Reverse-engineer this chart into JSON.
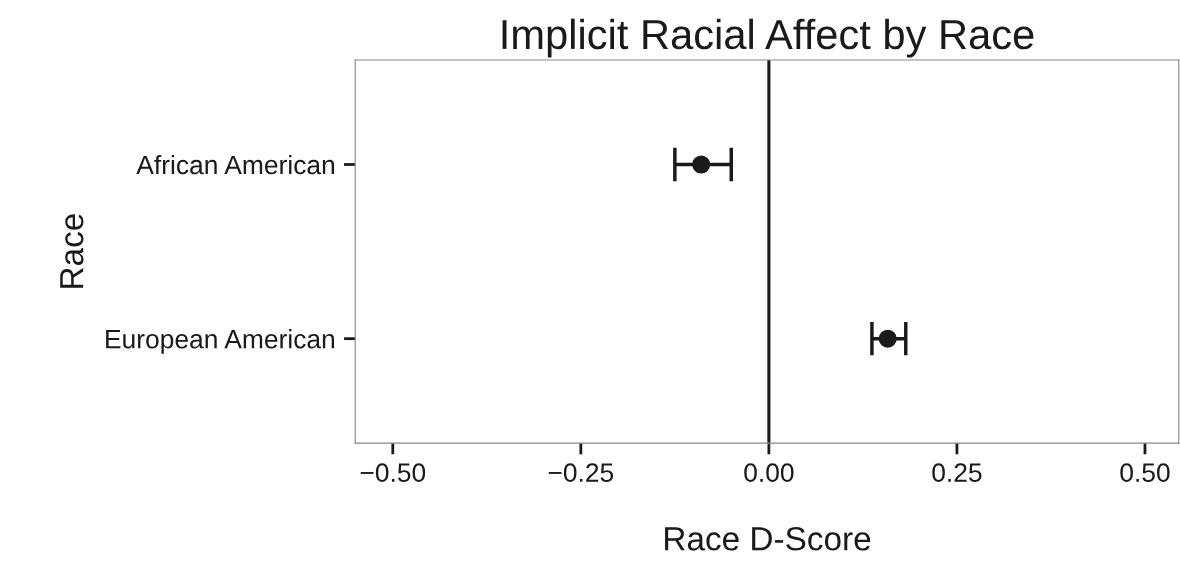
{
  "chart_data": {
    "type": "scatter",
    "title": "Implicit Racial Affect by Race",
    "xlabel": "Race D-Score",
    "ylabel": "Race",
    "orientation": "horizontal",
    "categories": [
      "African American",
      "European American"
    ],
    "series": [
      {
        "color": "#1a1a1a",
        "values": [
          -0.09,
          0.158
        ],
        "errors": [
          [
            -0.125,
            -0.05
          ],
          [
            0.137,
            0.182
          ]
        ]
      }
    ],
    "marker": "circle",
    "grid": false,
    "legend": false,
    "xlim": [
      -0.55,
      0.545
    ],
    "xticks": [
      {
        "value": -0.5,
        "label": "−0.50"
      },
      {
        "value": -0.25,
        "label": "−0.25"
      },
      {
        "value": 0,
        "label": "0.00"
      },
      0.25,
      {
        "value": 0.5,
        "label": "0.50"
      }
    ],
    "ref_lines": [
      {
        "axis": "x",
        "value": 0,
        "color": "#1a1a1a"
      }
    ]
  }
}
